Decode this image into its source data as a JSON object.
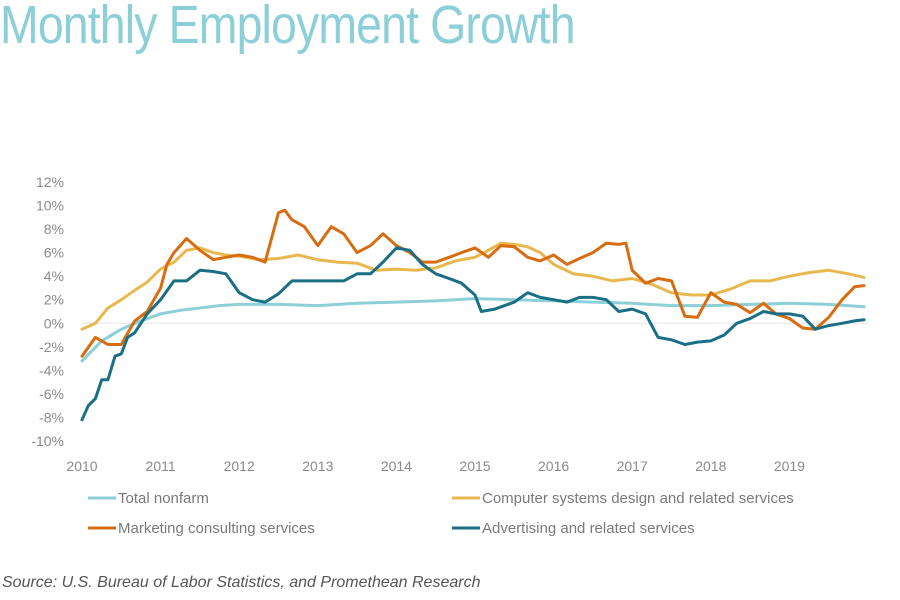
{
  "title": "Monthly Employment Growth",
  "source": "Source: U.S. Bureau of Labor Statistics, and Promethean Research",
  "chart_data": {
    "type": "line",
    "title": "Monthly Employment Growth",
    "xlabel": "",
    "ylabel": "",
    "x_ticks": [
      "2010",
      "2011",
      "2012",
      "2013",
      "2014",
      "2015",
      "2016",
      "2017",
      "2018",
      "2019"
    ],
    "y_ticks": [
      "12%",
      "10%",
      "8%",
      "6%",
      "4%",
      "2%",
      "0%",
      "-2%",
      "-4%",
      "-6%",
      "-8%",
      "-10%"
    ],
    "ylim": [
      -10,
      12
    ],
    "xlim": [
      2010,
      2020
    ],
    "grid": false,
    "legend_placement": "bottom",
    "series": [
      {
        "name": "Total nonfarm",
        "color": "#8ccfd9",
        "x": [
          2010.0,
          2010.25,
          2010.5,
          2010.75,
          2011.0,
          2011.25,
          2011.5,
          2011.75,
          2012.0,
          2012.5,
          2013.0,
          2013.5,
          2014.0,
          2014.5,
          2015.0,
          2015.5,
          2016.0,
          2016.5,
          2017.0,
          2017.5,
          2018.0,
          2018.5,
          2019.0,
          2019.5,
          2019.95
        ],
        "y": [
          -3.2,
          -1.5,
          -0.5,
          0.2,
          0.8,
          1.1,
          1.3,
          1.5,
          1.6,
          1.6,
          1.5,
          1.7,
          1.8,
          1.9,
          2.1,
          2.0,
          1.9,
          1.8,
          1.7,
          1.5,
          1.5,
          1.6,
          1.7,
          1.6,
          1.4
        ]
      },
      {
        "name": "Computer systems design and related services",
        "color": "#e8b84e",
        "x": [
          2010.0,
          2010.17,
          2010.33,
          2010.5,
          2010.67,
          2010.83,
          2011.0,
          2011.17,
          2011.33,
          2011.5,
          2011.67,
          2011.83,
          2012.0,
          2012.25,
          2012.5,
          2012.75,
          2013.0,
          2013.25,
          2013.5,
          2013.75,
          2014.0,
          2014.25,
          2014.5,
          2014.75,
          2015.0,
          2015.17,
          2015.33,
          2015.5,
          2015.67,
          2015.83,
          2016.0,
          2016.25,
          2016.5,
          2016.75,
          2017.0,
          2017.25,
          2017.5,
          2017.75,
          2018.0,
          2018.25,
          2018.5,
          2018.75,
          2019.0,
          2019.25,
          2019.5,
          2019.75,
          2019.95
        ],
        "y": [
          -0.5,
          0.0,
          1.3,
          2.0,
          2.8,
          3.5,
          4.6,
          5.2,
          6.2,
          6.4,
          6.0,
          5.8,
          5.7,
          5.4,
          5.5,
          5.8,
          5.4,
          5.2,
          5.1,
          4.5,
          4.6,
          4.5,
          4.7,
          5.3,
          5.6,
          6.2,
          6.8,
          6.7,
          6.5,
          6.0,
          5.0,
          4.2,
          4.0,
          3.6,
          3.8,
          3.3,
          2.6,
          2.4,
          2.4,
          2.9,
          3.6,
          3.6,
          4.0,
          4.3,
          4.5,
          4.2,
          3.9
        ]
      },
      {
        "name": "Marketing consulting services",
        "color": "#d86c10",
        "x": [
          2010.0,
          2010.17,
          2010.33,
          2010.5,
          2010.67,
          2010.83,
          2011.0,
          2011.08,
          2011.17,
          2011.33,
          2011.5,
          2011.67,
          2011.83,
          2012.0,
          2012.17,
          2012.33,
          2012.5,
          2012.58,
          2012.67,
          2012.83,
          2013.0,
          2013.17,
          2013.33,
          2013.5,
          2013.67,
          2013.83,
          2014.0,
          2014.17,
          2014.33,
          2014.5,
          2014.67,
          2014.83,
          2015.0,
          2015.17,
          2015.33,
          2015.5,
          2015.67,
          2015.83,
          2016.0,
          2016.17,
          2016.33,
          2016.5,
          2016.67,
          2016.83,
          2016.92,
          2017.0,
          2017.17,
          2017.33,
          2017.5,
          2017.67,
          2017.83,
          2018.0,
          2018.17,
          2018.33,
          2018.5,
          2018.67,
          2018.83,
          2019.0,
          2019.17,
          2019.33,
          2019.5,
          2019.67,
          2019.83,
          2019.95
        ],
        "y": [
          -2.8,
          -1.2,
          -1.8,
          -1.8,
          0.2,
          1.0,
          3.0,
          5.0,
          6.0,
          7.2,
          6.2,
          5.4,
          5.6,
          5.8,
          5.6,
          5.2,
          9.4,
          9.6,
          8.8,
          8.2,
          6.6,
          8.2,
          7.6,
          6.0,
          6.6,
          7.6,
          6.6,
          6.0,
          5.2,
          5.2,
          5.6,
          6.0,
          6.4,
          5.6,
          6.6,
          6.5,
          5.6,
          5.3,
          5.8,
          5.0,
          5.5,
          6.0,
          6.8,
          6.7,
          6.8,
          4.5,
          3.4,
          3.8,
          3.6,
          0.6,
          0.5,
          2.6,
          1.8,
          1.6,
          0.9,
          1.7,
          0.8,
          0.4,
          -0.4,
          -0.5,
          0.5,
          2.0,
          3.1,
          3.2
        ]
      },
      {
        "name": "Advertising and related services",
        "color": "#1a6f84",
        "x": [
          2010.0,
          2010.08,
          2010.17,
          2010.25,
          2010.33,
          2010.42,
          2010.5,
          2010.58,
          2010.67,
          2010.75,
          2010.83,
          2011.0,
          2011.17,
          2011.33,
          2011.5,
          2011.67,
          2011.83,
          2012.0,
          2012.17,
          2012.33,
          2012.5,
          2012.67,
          2012.83,
          2013.0,
          2013.17,
          2013.33,
          2013.5,
          2013.67,
          2013.83,
          2014.0,
          2014.17,
          2014.33,
          2014.5,
          2014.67,
          2014.83,
          2015.0,
          2015.08,
          2015.25,
          2015.5,
          2015.67,
          2015.83,
          2016.0,
          2016.17,
          2016.33,
          2016.5,
          2016.67,
          2016.83,
          2017.0,
          2017.17,
          2017.33,
          2017.5,
          2017.67,
          2017.83,
          2018.0,
          2018.17,
          2018.33,
          2018.5,
          2018.67,
          2018.83,
          2019.0,
          2019.17,
          2019.33,
          2019.5,
          2019.67,
          2019.83,
          2019.95
        ],
        "y": [
          -8.2,
          -7.0,
          -6.4,
          -4.8,
          -4.8,
          -2.8,
          -2.6,
          -1.2,
          -0.8,
          0.0,
          0.8,
          2.0,
          3.6,
          3.6,
          4.5,
          4.4,
          4.2,
          2.6,
          2.0,
          1.8,
          2.5,
          3.6,
          3.6,
          3.6,
          3.6,
          3.6,
          4.2,
          4.2,
          5.2,
          6.4,
          6.2,
          5.0,
          4.2,
          3.8,
          3.4,
          2.4,
          1.0,
          1.2,
          1.8,
          2.6,
          2.2,
          2.0,
          1.8,
          2.2,
          2.2,
          2.0,
          1.0,
          1.2,
          0.8,
          -1.2,
          -1.4,
          -1.8,
          -1.6,
          -1.5,
          -1.0,
          0.0,
          0.4,
          1.0,
          0.8,
          0.8,
          0.6,
          -0.5,
          -0.2,
          0.0,
          0.2,
          0.3
        ]
      }
    ]
  }
}
